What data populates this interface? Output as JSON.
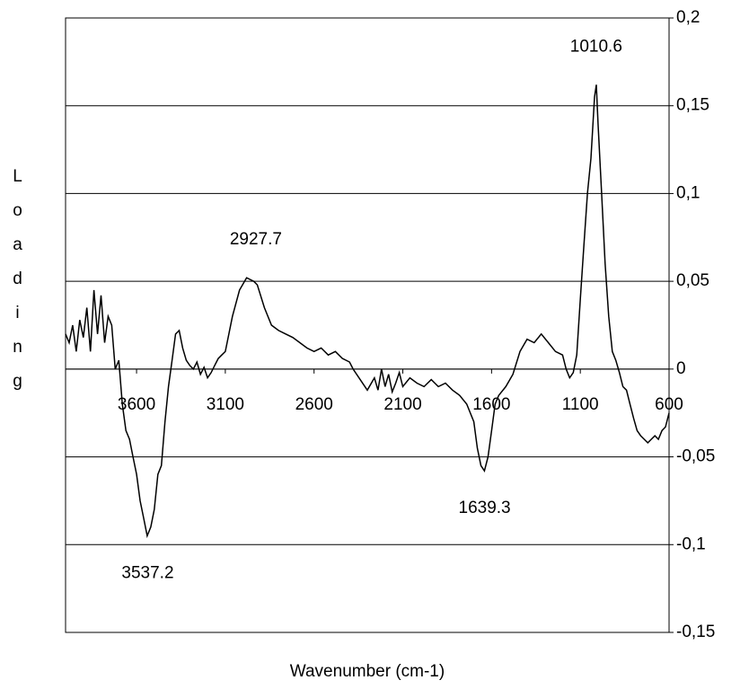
{
  "chart_data": {
    "type": "line",
    "x_label": "Wavenumber (cm-1)",
    "y_label": "Loading",
    "xlim": [
      4000,
      600
    ],
    "xticks": [
      3600,
      3100,
      2600,
      2100,
      1600,
      1100,
      600
    ],
    "ylim": [
      -0.15,
      0.2
    ],
    "yticks": [
      {
        "value": -0.15,
        "label": "-0,15"
      },
      {
        "value": -0.1,
        "label": "-0,1"
      },
      {
        "value": -0.05,
        "label": "-0,05"
      },
      {
        "value": 0,
        "label": "0"
      },
      {
        "value": 0.05,
        "label": "0,05"
      },
      {
        "value": 0.1,
        "label": "0,1"
      },
      {
        "value": 0.15,
        "label": "0,15"
      },
      {
        "value": 0.2,
        "label": "0,2"
      }
    ],
    "grid": true,
    "series": [
      {
        "color": "#000000",
        "x": [
          4000,
          3980,
          3960,
          3940,
          3920,
          3900,
          3880,
          3860,
          3840,
          3820,
          3800,
          3780,
          3760,
          3740,
          3720,
          3700,
          3680,
          3660,
          3640,
          3620,
          3600,
          3580,
          3560,
          3540,
          3520,
          3500,
          3480,
          3460,
          3440,
          3420,
          3400,
          3380,
          3360,
          3340,
          3320,
          3300,
          3280,
          3260,
          3240,
          3220,
          3200,
          3180,
          3160,
          3140,
          3120,
          3100,
          3060,
          3020,
          2980,
          2940,
          2920,
          2880,
          2840,
          2800,
          2760,
          2720,
          2680,
          2640,
          2600,
          2560,
          2520,
          2480,
          2440,
          2400,
          2380,
          2300,
          2260,
          2240,
          2220,
          2200,
          2180,
          2160,
          2140,
          2120,
          2100,
          2060,
          2020,
          1980,
          1940,
          1900,
          1860,
          1820,
          1780,
          1740,
          1700,
          1680,
          1660,
          1640,
          1620,
          1600,
          1580,
          1560,
          1520,
          1480,
          1440,
          1400,
          1360,
          1320,
          1280,
          1240,
          1200,
          1180,
          1160,
          1140,
          1120,
          1100,
          1080,
          1060,
          1040,
          1020,
          1010,
          1000,
          980,
          960,
          940,
          920,
          900,
          880,
          860,
          840,
          820,
          800,
          780,
          760,
          740,
          720,
          700,
          680,
          660,
          640,
          620,
          600
        ],
        "values": [
          0.02,
          0.015,
          0.025,
          0.01,
          0.028,
          0.018,
          0.035,
          0.01,
          0.045,
          0.02,
          0.042,
          0.015,
          0.03,
          0.025,
          0.0,
          0.005,
          -0.02,
          -0.035,
          -0.04,
          -0.05,
          -0.06,
          -0.075,
          -0.085,
          -0.095,
          -0.09,
          -0.08,
          -0.06,
          -0.055,
          -0.03,
          -0.01,
          0.005,
          0.02,
          0.022,
          0.012,
          0.005,
          0.002,
          0.0,
          0.004,
          -0.003,
          0.001,
          -0.005,
          -0.002,
          0.002,
          0.006,
          0.008,
          0.01,
          0.03,
          0.045,
          0.052,
          0.05,
          0.048,
          0.035,
          0.025,
          0.022,
          0.02,
          0.018,
          0.015,
          0.012,
          0.01,
          0.012,
          0.008,
          0.01,
          0.006,
          0.004,
          0.0,
          -0.012,
          -0.005,
          -0.012,
          0.0,
          -0.01,
          -0.003,
          -0.013,
          -0.008,
          -0.002,
          -0.01,
          -0.005,
          -0.008,
          -0.01,
          -0.006,
          -0.01,
          -0.008,
          -0.012,
          -0.015,
          -0.02,
          -0.03,
          -0.045,
          -0.055,
          -0.058,
          -0.05,
          -0.035,
          -0.02,
          -0.015,
          -0.01,
          -0.003,
          0.01,
          0.017,
          0.015,
          0.02,
          0.015,
          0.01,
          0.008,
          0.0,
          -0.005,
          -0.002,
          0.008,
          0.04,
          0.07,
          0.1,
          0.12,
          0.155,
          0.162,
          0.14,
          0.1,
          0.06,
          0.03,
          0.01,
          0.005,
          -0.002,
          -0.01,
          -0.012,
          -0.02,
          -0.028,
          -0.035,
          -0.038,
          -0.04,
          -0.042,
          -0.04,
          -0.038,
          -0.04,
          -0.035,
          -0.033,
          -0.025
        ]
      }
    ],
    "annotations": [
      {
        "x": 1010.6,
        "y": 0.162
      },
      {
        "x": 2927.7,
        "y": 0.052
      },
      {
        "x": 1639.3,
        "y": -0.058
      },
      {
        "x": 3537.2,
        "y": -0.095
      }
    ]
  }
}
